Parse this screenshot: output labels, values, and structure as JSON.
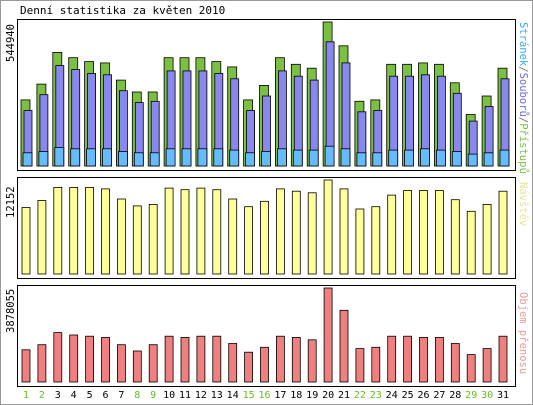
{
  "chart_data": {
    "type": "bar",
    "title": "Denní statistika za květen 2010",
    "categories": [
      "1",
      "2",
      "3",
      "4",
      "5",
      "6",
      "7",
      "8",
      "9",
      "10",
      "11",
      "12",
      "13",
      "14",
      "15",
      "16",
      "17",
      "18",
      "19",
      "20",
      "21",
      "22",
      "23",
      "24",
      "25",
      "26",
      "27",
      "28",
      "29",
      "30",
      "31"
    ],
    "weekend_days": [
      "1",
      "2",
      "8",
      "9",
      "15",
      "16",
      "22",
      "23",
      "29",
      "30"
    ],
    "day_label_colors": {
      "weekday": "#000000",
      "weekend": "#66bb22"
    },
    "panels": [
      {
        "label": "Stránek/Souborů/Přístupů",
        "label_parts": [
          "Stránek",
          "/",
          "Souborů",
          "/",
          "Přístupů"
        ],
        "label_colors": [
          "#33aaff",
          "#777777",
          "#6a6ae8",
          "#777777",
          "#7bc043"
        ],
        "max_label": "544940",
        "ylim": [
          0,
          544940
        ],
        "series": [
          {
            "name": "Přístupů",
            "color": "#7bc043",
            "values": [
              250000,
              310000,
              430000,
              410000,
              395000,
              390000,
              325000,
              280000,
              280000,
              410000,
              410000,
              410000,
              395000,
              375000,
              250000,
              305000,
              410000,
              385000,
              370000,
              544940,
              455000,
              245000,
              250000,
              385000,
              385000,
              390000,
              385000,
              315000,
              195000,
              265000,
              370000
            ]
          },
          {
            "name": "Souborů",
            "color": "#8888ee",
            "values": [
              210000,
              270000,
              380000,
              365000,
              350000,
              345000,
              285000,
              240000,
              245000,
              360000,
              360000,
              360000,
              350000,
              330000,
              210000,
              265000,
              360000,
              340000,
              325000,
              470000,
              390000,
              205000,
              210000,
              340000,
              340000,
              345000,
              340000,
              275000,
              170000,
              225000,
              330000
            ]
          },
          {
            "name": "Stránek",
            "color": "#66bbff",
            "values": [
              50000,
              55000,
              70000,
              65000,
              65000,
              65000,
              55000,
              50000,
              50000,
              65000,
              65000,
              65000,
              65000,
              60000,
              50000,
              55000,
              65000,
              60000,
              60000,
              75000,
              65000,
              50000,
              50000,
              60000,
              60000,
              65000,
              60000,
              55000,
              45000,
              50000,
              60000
            ]
          }
        ]
      },
      {
        "label": "Návštěv",
        "label_color": "#e6e690",
        "max_label": "12152",
        "ylim": [
          0,
          12152
        ],
        "series": [
          {
            "name": "Návštěv",
            "color": "#ffff99",
            "values": [
              8600,
              9500,
              11200,
              11200,
              11200,
              11000,
              9700,
              8800,
              9000,
              11100,
              10900,
              11100,
              10900,
              9700,
              8700,
              9400,
              11000,
              10700,
              10500,
              12152,
              11000,
              8400,
              8700,
              10200,
              10800,
              10800,
              10800,
              9600,
              8100,
              9000,
              10700
            ]
          }
        ]
      },
      {
        "label": "Objem přenosu",
        "label_color": "#ee9999",
        "max_label": "3878055",
        "ylim": [
          0,
          3878055
        ],
        "series": [
          {
            "name": "Objem přenosu",
            "color": "#f08080",
            "values": [
              1330000,
              1540000,
              2040000,
              1940000,
              1890000,
              1840000,
              1540000,
              1280000,
              1540000,
              1890000,
              1840000,
              1890000,
              1890000,
              1590000,
              1230000,
              1430000,
              1890000,
              1840000,
              1740000,
              3878055,
              2960000,
              1380000,
              1430000,
              1890000,
              1890000,
              1840000,
              1840000,
              1590000,
              1130000,
              1380000,
              1890000
            ]
          }
        ]
      }
    ],
    "grid": false,
    "legend": "none"
  }
}
